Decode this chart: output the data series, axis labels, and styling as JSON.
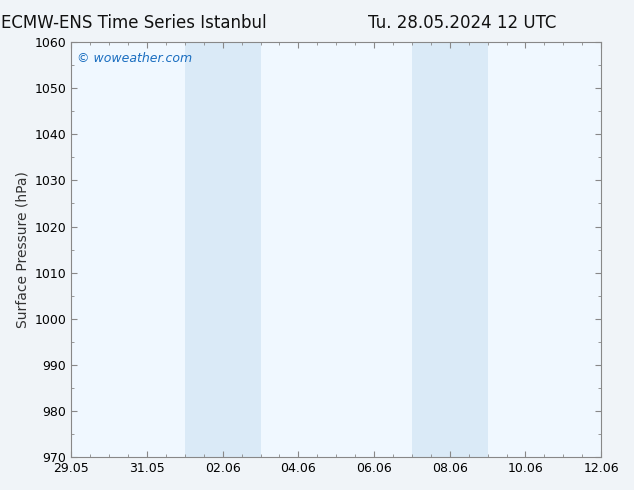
{
  "title_left": "ECMW-ENS Time Series Istanbul",
  "title_right": "Tu. 28.05.2024 12 UTC",
  "ylabel": "Surface Pressure (hPa)",
  "ylim": [
    970,
    1060
  ],
  "yticks": [
    970,
    980,
    990,
    1000,
    1010,
    1020,
    1030,
    1040,
    1050,
    1060
  ],
  "xlim_start": 0,
  "xlim_end": 14,
  "xtick_labels": [
    "29.05",
    "31.05",
    "02.06",
    "04.06",
    "06.06",
    "08.06",
    "10.06",
    "12.06"
  ],
  "xtick_positions": [
    0,
    2,
    4,
    6,
    8,
    10,
    12,
    14
  ],
  "shaded_bands": [
    {
      "x_start": 3.0,
      "x_end": 5.0
    },
    {
      "x_start": 9.0,
      "x_end": 11.0
    }
  ],
  "shade_color": "#daeaf7",
  "background_color": "#f0f4f8",
  "plot_bg_color": "#f0f8ff",
  "watermark_text": "© woweather.com",
  "watermark_color": "#1a6ec0",
  "title_fontsize": 12,
  "axis_label_fontsize": 10,
  "tick_fontsize": 9,
  "watermark_fontsize": 9,
  "spine_color": "#888888"
}
